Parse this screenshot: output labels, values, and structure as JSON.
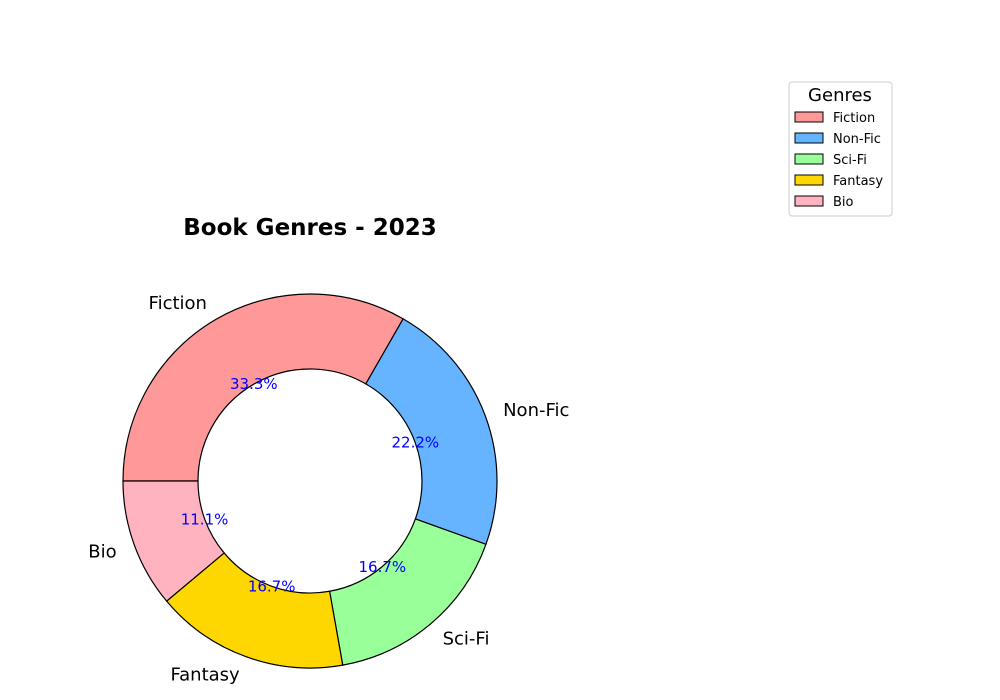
{
  "chart_data": {
    "type": "pie",
    "title": "Book Genres - 2023",
    "donut": true,
    "categories": [
      "Fiction",
      "Non-Fic",
      "Sci-Fi",
      "Fantasy",
      "Bio"
    ],
    "values": [
      33.3,
      22.2,
      16.7,
      16.7,
      11.1
    ],
    "percent_labels": [
      "33.3%",
      "22.2%",
      "16.7%",
      "16.7%",
      "11.1%"
    ],
    "colors": [
      "#ff9999",
      "#66b3ff",
      "#99ff99",
      "#ffd700",
      "#ffb3c1"
    ],
    "percent_label_color": "#0000ff",
    "legend": {
      "title": "Genres",
      "placement": "top-right",
      "entries": [
        "Fiction",
        "Non-Fic",
        "Sci-Fi",
        "Fantasy",
        "Bio"
      ]
    }
  }
}
